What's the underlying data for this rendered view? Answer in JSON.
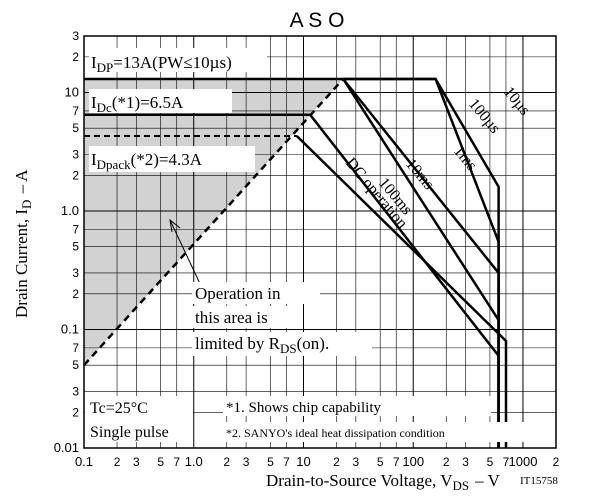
{
  "chart_data": {
    "type": "line",
    "title": "A S O",
    "xlabel": "Drain-to-Source Voltage, V",
    "xlabel_sub": "DS",
    "xlabel_unit": "–  V",
    "ylabel": "Drain Current, I",
    "ylabel_sub": "D",
    "ylabel_unit": "–  A",
    "figure_id": "IT15758",
    "x_scale": "log",
    "y_scale": "log",
    "xlim": [
      0.1,
      2000
    ],
    "ylim": [
      0.01,
      30
    ],
    "grid": true,
    "x_ticks": [
      {
        "v": 0.1,
        "t": "0.1",
        "major": true
      },
      {
        "v": 0.2,
        "t": "2"
      },
      {
        "v": 0.3,
        "t": "3"
      },
      {
        "v": 0.5,
        "t": "5"
      },
      {
        "v": 0.7,
        "t": "7"
      },
      {
        "v": 1,
        "t": "1.0",
        "major": true
      },
      {
        "v": 2,
        "t": "2"
      },
      {
        "v": 3,
        "t": "3"
      },
      {
        "v": 5,
        "t": "5"
      },
      {
        "v": 7,
        "t": "7"
      },
      {
        "v": 10,
        "t": "10",
        "major": true
      },
      {
        "v": 20,
        "t": "2"
      },
      {
        "v": 30,
        "t": "3"
      },
      {
        "v": 50,
        "t": "5"
      },
      {
        "v": 70,
        "t": "7"
      },
      {
        "v": 100,
        "t": "100",
        "major": true
      },
      {
        "v": 200,
        "t": "2"
      },
      {
        "v": 300,
        "t": "3"
      },
      {
        "v": 500,
        "t": "5"
      },
      {
        "v": 700,
        "t": "7"
      },
      {
        "v": 1000,
        "t": "1000",
        "major": true
      },
      {
        "v": 2000,
        "t": "2"
      }
    ],
    "y_ticks": [
      {
        "v": 0.01,
        "t": "0.01",
        "major": true
      },
      {
        "v": 0.02,
        "t": "2"
      },
      {
        "v": 0.03,
        "t": "3"
      },
      {
        "v": 0.05,
        "t": "5"
      },
      {
        "v": 0.07,
        "t": "7"
      },
      {
        "v": 0.1,
        "t": "0.1",
        "major": true
      },
      {
        "v": 0.2,
        "t": "2"
      },
      {
        "v": 0.3,
        "t": "3"
      },
      {
        "v": 0.5,
        "t": "5"
      },
      {
        "v": 0.7,
        "t": "7"
      },
      {
        "v": 1,
        "t": "1.0",
        "major": true
      },
      {
        "v": 2,
        "t": "2"
      },
      {
        "v": 3,
        "t": "3"
      },
      {
        "v": 5,
        "t": "5"
      },
      {
        "v": 7,
        "t": "7"
      },
      {
        "v": 10,
        "t": "10",
        "major": true
      },
      {
        "v": 20,
        "t": "2"
      },
      {
        "v": 30,
        "t": "3"
      }
    ],
    "limit_lines": [
      {
        "name": "IDP",
        "label": "=13A(PW≤10µs)",
        "sub": "DP",
        "value": 13
      },
      {
        "name": "IDc",
        "label": "(*1)=6.5A",
        "sub": "Dc",
        "value": 6.5
      },
      {
        "name": "IDpack",
        "label": "(*2)=4.3A",
        "sub": "Dpack",
        "value": 4.3
      }
    ],
    "rds_on_limit": {
      "points": [
        [
          0.1,
          0.05
        ],
        [
          23,
          13
        ]
      ]
    },
    "series": [
      {
        "name": "10µs",
        "points": [
          [
            23,
            13
          ],
          [
            160,
            13
          ],
          [
            600,
            1.6
          ],
          [
            600,
            0.01
          ]
        ]
      },
      {
        "name": "100µs",
        "points": [
          [
            23,
            13
          ],
          [
            160,
            13
          ],
          [
            600,
            0.55
          ],
          [
            600,
            0.01
          ]
        ]
      },
      {
        "name": "1ms",
        "points": [
          [
            23,
            13
          ],
          [
            600,
            0.3
          ],
          [
            600,
            0.01
          ]
        ]
      },
      {
        "name": "10ms",
        "points": [
          [
            23,
            13
          ],
          [
            600,
            0.12
          ],
          [
            600,
            0.01
          ]
        ]
      },
      {
        "name": "100ms",
        "points": [
          [
            11.5,
            6.5
          ],
          [
            600,
            0.06
          ],
          [
            600,
            0.01
          ]
        ]
      },
      {
        "name": "DC operation",
        "points": [
          [
            8.7,
            4.3
          ],
          [
            700,
            0.08
          ],
          [
            700,
            0.01
          ]
        ]
      }
    ],
    "annotations": {
      "operation_area": [
        "Operation in",
        "this area is",
        "limited by R",
        "DS",
        "(on)."
      ],
      "conditions": [
        "Tc=25°C",
        "Single pulse"
      ],
      "notes": [
        "*1. Shows chip capability",
        "*2. SANYO's ideal heat dissipation condition"
      ]
    }
  }
}
